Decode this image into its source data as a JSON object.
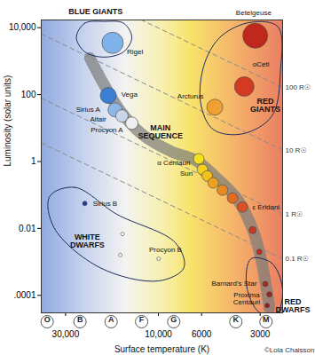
{
  "chart_data": {
    "type": "scatter",
    "xlabel": "Surface temperature (K)",
    "ylabel": "Luminosity (solar units)",
    "log": true,
    "xlim": [
      40000,
      2300
    ],
    "ylim": [
      3e-05,
      17000
    ],
    "xticks": [
      {
        "value": 30000,
        "label": "30,000"
      },
      {
        "value": 10000,
        "label": "10,000"
      },
      6000,
      3000
    ],
    "yticks": [
      {
        "value": 0.0001,
        "label": ".0001"
      },
      0.01,
      1,
      100,
      {
        "value": 10000,
        "label": "10,000"
      }
    ],
    "spectral_classes": {
      "labels": [
        "O",
        "B",
        "A",
        "F",
        "G",
        "K",
        "M"
      ],
      "x": [
        37300,
        25300,
        17500,
        12200,
        8340,
        4000,
        2800
      ]
    },
    "stars": {
      "x": [
        17200,
        18100,
        16700,
        15400,
        13700,
        5130,
        3180,
        3620,
        6200,
        5940,
        5610,
        5230,
        4690,
        4160,
        3700,
        3280,
        3030,
        2825,
        2690,
        2760,
        23900,
        15300,
        15700,
        9980
      ],
      "y": [
        3520,
        94,
        35,
        23,
        14,
        42,
        5750,
        174,
        1.2,
        0.58,
        0.37,
        0.23,
        0.14,
        0.081,
        0.044,
        0.0089,
        0.002,
        0.00022,
        0.000107,
        5e-05,
        0.056,
        0.0068,
        0.0016,
        0.00124
      ],
      "colors": [
        "#7fb2e8",
        "#3a7fd5",
        "#8fb6e6",
        "#c9d6ea",
        "#eeeeee",
        "#f0a030",
        "#c0281e",
        "#d23a22",
        "#f5e020",
        "#f2d21c",
        "#f0c020",
        "#eea020",
        "#e88a22",
        "#e06a22",
        "#d95025",
        "#c83a22",
        "#b83020",
        "#a82a20",
        "#a02420",
        "#8c1e1c",
        "#1d3f9a",
        "#ffffff",
        "#ffffff",
        "#ffffff"
      ],
      "sizes": [
        12,
        9,
        8,
        7,
        7,
        9,
        14,
        11,
        6,
        6,
        6,
        6,
        6,
        6,
        6,
        4,
        3,
        3,
        3,
        2.5,
        2.5,
        2,
        2,
        2
      ]
    },
    "main_sequence_band": {
      "x": [
        22500,
        19000,
        15600,
        12200,
        8600,
        6380,
        4980,
        3880,
        3240,
        2970,
        2800,
        2690
      ],
      "y": [
        1240,
        196,
        31,
        6.7,
        2.0,
        1.06,
        0.31,
        0.067,
        0.0078,
        0.00124,
        0.0002,
        4.2e-05
      ],
      "color": "#7a7a7a"
    },
    "regions": [
      {
        "x": [
          26400,
          23900,
          19000,
          15100,
          13700,
          15100,
          19000,
          23900
        ],
        "y": [
          5090,
          13600,
          15400,
          13600,
          5090,
          1900,
          1320,
          1900
        ]
      },
      {
        "x": [
          5770,
          4730,
          3340,
          2430,
          2360,
          2610,
          3700,
          5230,
          6070
        ],
        "y": [
          912,
          5750,
          14500,
          10600,
          493,
          22.9,
          6.7,
          9.1,
          57.5
        ]
      },
      {
        "x": [
          36200,
          26900,
          16400,
          8170,
          7400,
          9980,
          19950,
          34400
        ],
        "y": [
          0.091,
          0.169,
          0.0267,
          0.0037,
          0.00067,
          0.00027,
          0.00067,
          0.0106
        ]
      },
      {
        "x": [
          3340,
          2610,
          2300,
          2480,
          3030,
          3520
        ],
        "y": [
          0.00124,
          0.00091,
          0.000145,
          2.75e-05,
          3.1e-05,
          0.00019
        ]
      }
    ],
    "radius_lines": [
      {
        "label": "100 R☉",
        "x": [
          12300,
          2300
        ],
        "y": [
          17400,
          163
        ]
      },
      {
        "label": "10 R☉",
        "x": [
          40000,
          2300
        ],
        "y": [
          6500,
          2.2
        ]
      },
      {
        "label": "1 R☉",
        "x": [
          40000,
          2300
        ],
        "y": [
          78,
          0.0267
        ]
      },
      {
        "label": "0.1 R☉",
        "x": [
          40000,
          2300
        ],
        "y": [
          3.6,
          0.00124
        ]
      }
    ],
    "star_labels": [
      {
        "text": "Rigel",
        "x": 13200,
        "y": 1900
      },
      {
        "text": "Vega",
        "x": 14100,
        "y": 100
      },
      {
        "text": "Sirius A",
        "x": 23000,
        "y": 35
      },
      {
        "text": "Altair",
        "x": 20400,
        "y": 17.9
      },
      {
        "text": "Procyon A",
        "x": 18400,
        "y": 8.6
      },
      {
        "text": "Arcturus",
        "x": 6840,
        "y": 88
      },
      {
        "text": "Betelgeuse",
        "x": 3240,
        "y": 28400
      },
      {
        "text": "οCeti",
        "x": 2970,
        "y": 807
      },
      {
        "text": "α Centauri",
        "x": 8340,
        "y": 0.94
      },
      {
        "text": "Sun",
        "x": 7180,
        "y": 0.45
      },
      {
        "text": "ε Eridani",
        "x": 2800,
        "y": 0.044
      },
      {
        "text": "Sirius B",
        "x": 18800,
        "y": 0.056
      },
      {
        "text": "Procyon B",
        "x": 9200,
        "y": 0.0023
      },
      {
        "text": "Barnard's Star",
        "x": 4080,
        "y": 0.00022
      },
      {
        "text": "Proxima\nCentauri",
        "x": 3520,
        "y": 7.8e-05
      }
    ],
    "region_labels": [
      {
        "text": "BLUE GIANTS",
        "x": 21000,
        "y": 30200
      },
      {
        "text": "MAIN\nSEQUENCE",
        "x": 9770,
        "y": 7.6
      },
      {
        "text": "RED\nGIANTS",
        "x": 2825,
        "y": 47.9
      },
      {
        "text": "WHITE\nDWARFS",
        "x": 23200,
        "y": 0.0043
      },
      {
        "text": "RED\nDWARFS",
        "x": 2040,
        "y": 4.8e-05
      }
    ],
    "credit": "©Lola Chaisson"
  }
}
